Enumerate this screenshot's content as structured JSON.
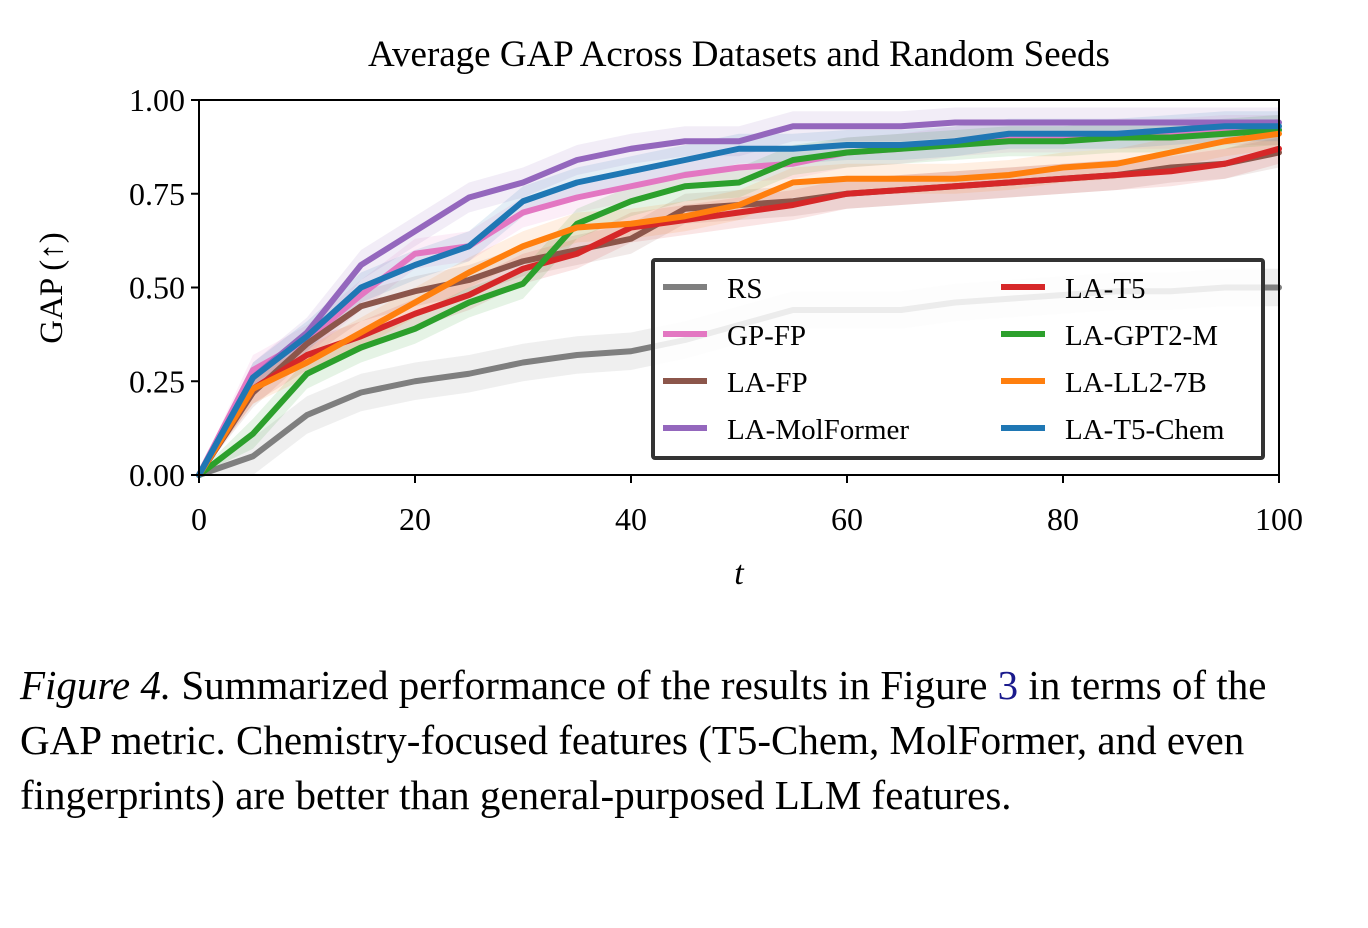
{
  "chart_data": {
    "type": "line",
    "title": "Average GAP Across Datasets and Random Seeds",
    "xlabel": "t",
    "ylabel": "GAP (↑)",
    "xlim": [
      0,
      100
    ],
    "ylim": [
      0,
      1
    ],
    "xticks": [
      "0",
      "20",
      "40",
      "60",
      "80",
      "100"
    ],
    "yticks": [
      "0.00",
      "0.25",
      "0.50",
      "0.75",
      "1.00"
    ],
    "grid": false,
    "legend_position": "lower-right",
    "x": [
      0,
      5,
      10,
      15,
      20,
      25,
      30,
      35,
      40,
      45,
      50,
      55,
      60,
      65,
      70,
      75,
      80,
      85,
      90,
      95,
      100
    ],
    "series": [
      {
        "name": "RS",
        "color": "#7f7f7f",
        "band": 0.05,
        "values": [
          0.0,
          0.05,
          0.16,
          0.22,
          0.25,
          0.27,
          0.3,
          0.32,
          0.33,
          0.36,
          0.4,
          0.44,
          0.44,
          0.44,
          0.46,
          0.47,
          0.48,
          0.49,
          0.49,
          0.5,
          0.5
        ]
      },
      {
        "name": "GP-FP",
        "color": "#e377c2",
        "band": 0.04,
        "values": [
          0.0,
          0.28,
          0.36,
          0.48,
          0.59,
          0.61,
          0.7,
          0.74,
          0.77,
          0.8,
          0.82,
          0.83,
          0.86,
          0.87,
          0.89,
          0.9,
          0.9,
          0.91,
          0.91,
          0.92,
          0.92
        ]
      },
      {
        "name": "LA-FP",
        "color": "#8c564b",
        "band": 0.04,
        "values": [
          0.0,
          0.22,
          0.35,
          0.45,
          0.49,
          0.52,
          0.57,
          0.6,
          0.63,
          0.71,
          0.72,
          0.73,
          0.75,
          0.76,
          0.77,
          0.78,
          0.79,
          0.8,
          0.82,
          0.83,
          0.86
        ]
      },
      {
        "name": "LA-MolFormer",
        "color": "#9467bd",
        "band": 0.04,
        "values": [
          0.0,
          0.26,
          0.38,
          0.56,
          0.65,
          0.74,
          0.78,
          0.84,
          0.87,
          0.89,
          0.89,
          0.93,
          0.93,
          0.93,
          0.94,
          0.94,
          0.94,
          0.94,
          0.94,
          0.94,
          0.94
        ]
      },
      {
        "name": "LA-T5",
        "color": "#d62728",
        "band": 0.04,
        "values": [
          0.0,
          0.23,
          0.32,
          0.37,
          0.43,
          0.48,
          0.55,
          0.59,
          0.66,
          0.68,
          0.7,
          0.72,
          0.75,
          0.76,
          0.77,
          0.78,
          0.79,
          0.8,
          0.81,
          0.83,
          0.87
        ]
      },
      {
        "name": "LA-GPT2-M",
        "color": "#2ca02c",
        "band": 0.04,
        "values": [
          0.0,
          0.11,
          0.27,
          0.34,
          0.39,
          0.46,
          0.51,
          0.67,
          0.73,
          0.77,
          0.78,
          0.84,
          0.86,
          0.87,
          0.88,
          0.89,
          0.89,
          0.9,
          0.9,
          0.91,
          0.92
        ]
      },
      {
        "name": "LA-LL2-7B",
        "color": "#ff7f0e",
        "band": 0.04,
        "values": [
          0.0,
          0.23,
          0.3,
          0.38,
          0.46,
          0.54,
          0.61,
          0.66,
          0.67,
          0.69,
          0.72,
          0.78,
          0.79,
          0.79,
          0.79,
          0.8,
          0.82,
          0.83,
          0.86,
          0.89,
          0.91
        ]
      },
      {
        "name": "LA-T5-Chem",
        "color": "#1f77b4",
        "band": 0.04,
        "values": [
          0.0,
          0.26,
          0.37,
          0.5,
          0.56,
          0.61,
          0.73,
          0.78,
          0.81,
          0.84,
          0.87,
          0.87,
          0.88,
          0.88,
          0.89,
          0.91,
          0.91,
          0.91,
          0.92,
          0.93,
          0.93
        ]
      }
    ]
  },
  "caption": {
    "label": "Figure 4.",
    "text_before_ref": " Summarized performance of the results in Figure ",
    "ref": "3",
    "text_after_ref": " in terms of the GAP metric. Chemistry-focused features (T5-Chem, MolFormer, and even fingerprints) are better than general-purposed LLM features."
  }
}
